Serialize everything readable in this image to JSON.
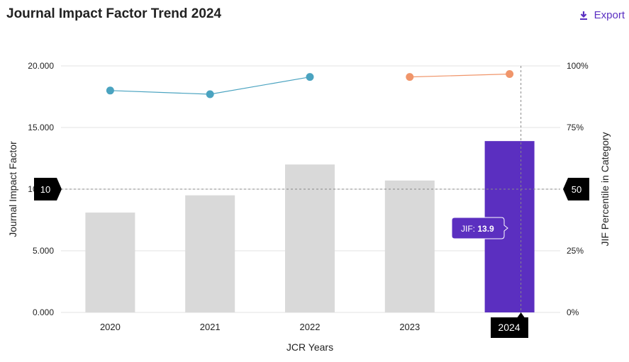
{
  "header": {
    "title": "Journal Impact Factor Trend 2024",
    "export_label": "Export",
    "export_icon": "download-icon"
  },
  "chart_data": {
    "type": "bar+line",
    "categories": [
      "2020",
      "2021",
      "2022",
      "2023",
      "2024"
    ],
    "xlabel": "JCR Years",
    "bars": {
      "name": "Journal Impact Factor",
      "values": [
        8.1,
        9.5,
        12.0,
        10.7,
        13.9
      ],
      "highlight_index": 4,
      "color": "#d9d9d9",
      "highlight_color": "#5b2fc0"
    },
    "y_left": {
      "label": "Journal Impact Factor",
      "ylim": [
        0,
        20
      ],
      "ticks": [
        "0.000",
        "5.000",
        "10.000",
        "15.000",
        "20.000"
      ],
      "tick_values": [
        0,
        5,
        10,
        15,
        20
      ]
    },
    "y_right": {
      "label": "JIF Percentile in Category",
      "ylim": [
        0,
        100
      ],
      "ticks": [
        "0%",
        "25%",
        "50%",
        "75%",
        "100%"
      ],
      "tick_values": [
        0,
        25,
        50,
        75,
        100
      ]
    },
    "percentile_series": [
      {
        "name": "percentile-a",
        "color": "#4aa3c0",
        "points": [
          {
            "x": "2020",
            "y": 90
          },
          {
            "x": "2021",
            "y": 88.5
          },
          {
            "x": "2022",
            "y": 95.5
          }
        ]
      },
      {
        "name": "percentile-b",
        "color": "#f0956a",
        "points": [
          {
            "x": "2023",
            "y": 95.5
          },
          {
            "x": "2024",
            "y": 96.7
          }
        ]
      }
    ],
    "crosshair": {
      "left_label": "10",
      "right_label": "50",
      "x_label": "2024",
      "value": 10
    },
    "tooltip": {
      "prefix": "JIF:",
      "value": "13.9"
    }
  }
}
